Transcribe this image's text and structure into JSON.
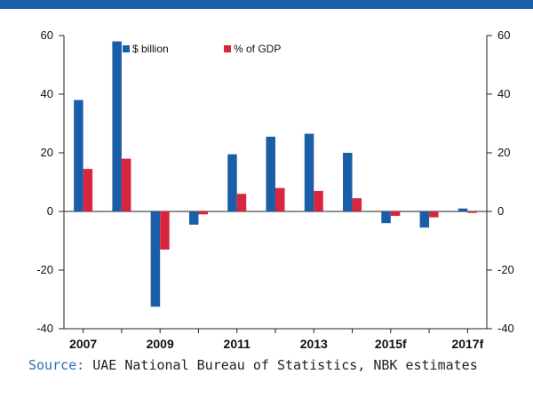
{
  "header": {
    "bar_color": "#1b5ea8"
  },
  "source": {
    "label": "Source:",
    "text": "UAE National Bureau of Statistics, NBK estimates"
  },
  "chart_data": {
    "type": "bar",
    "categories": [
      "2007",
      "2008",
      "2009",
      "2010",
      "2011",
      "2012",
      "2013",
      "2014",
      "2015f",
      "2016f",
      "2017f"
    ],
    "x_tick_labels": [
      "2007",
      "2009",
      "2011",
      "2013",
      "2015f",
      "2017f"
    ],
    "series": [
      {
        "name": "$ billion",
        "color": "#1b5ea8",
        "values": [
          38,
          58,
          -32.5,
          -4.5,
          19.5,
          25.5,
          26.5,
          20,
          -4,
          -5.5,
          1
        ]
      },
      {
        "name": "% of GDP",
        "color": "#d7263d",
        "values": [
          14.5,
          18,
          -13,
          -1,
          6,
          8,
          7,
          4.5,
          -1.5,
          -2,
          -0.5
        ]
      }
    ],
    "ylim": [
      -40,
      60
    ],
    "yticks": [
      -40,
      -20,
      0,
      20,
      40,
      60
    ],
    "ytick_labels": [
      "-40",
      "-20",
      "0",
      "20",
      "40",
      "60"
    ],
    "legend_position": "top",
    "grid": false,
    "title": "",
    "xlabel": "",
    "ylabel": ""
  }
}
